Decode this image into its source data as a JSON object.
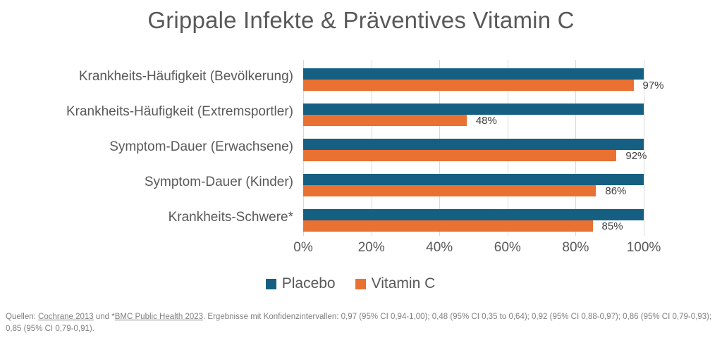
{
  "title": "Grippale Infekte & Präventives Vitamin C",
  "chart_data": {
    "type": "bar",
    "orientation": "horizontal",
    "title": "Grippale Infekte & Präventives Vitamin C",
    "categories": [
      "Krankheits-Häufigkeit (Bevölkerung)",
      "Krankheits-Häufigkeit (Extremsportler)",
      "Symptom-Dauer (Erwachsene)",
      "Symptom-Dauer (Kinder)",
      "Krankheits-Schwere*"
    ],
    "series": [
      {
        "name": "Placebo",
        "color": "#156082",
        "values": [
          100,
          100,
          100,
          100,
          100
        ]
      },
      {
        "name": "Vitamin C",
        "color": "#E97132",
        "values": [
          97,
          48,
          92,
          86,
          85
        ]
      }
    ],
    "value_labels": [
      "97%",
      "48%",
      "92%",
      "86%",
      "85%"
    ],
    "x_ticks": [
      "0%",
      "20%",
      "40%",
      "60%",
      "80%",
      "100%"
    ],
    "xlim": [
      0,
      100
    ],
    "xlabel": "",
    "ylabel": "",
    "grid": true,
    "legend_position": "bottom"
  },
  "colors": {
    "placebo": "#156082",
    "vitamin_c": "#E97132",
    "gridline": "#d9d9d9",
    "axis_text": "#595959",
    "value_text": "#404040",
    "footer_text": "#7f7f7f"
  },
  "footer": {
    "prefix": "Quellen: ",
    "link1": "Cochrane 2013",
    "middle": " und *",
    "link2": "BMC Public Health 2023",
    "suffix": ". Ergebnisse mit Konfidenzintervallen: 0,97 (95% CI 0,94-1,00); 0,48 (95% CI 0,35 to 0,64); 0,92 (95% CI 0,88-0,97); 0,86 (95% CI 0,79-0,93); 0,85 (95% CI 0,79-0,91)."
  }
}
